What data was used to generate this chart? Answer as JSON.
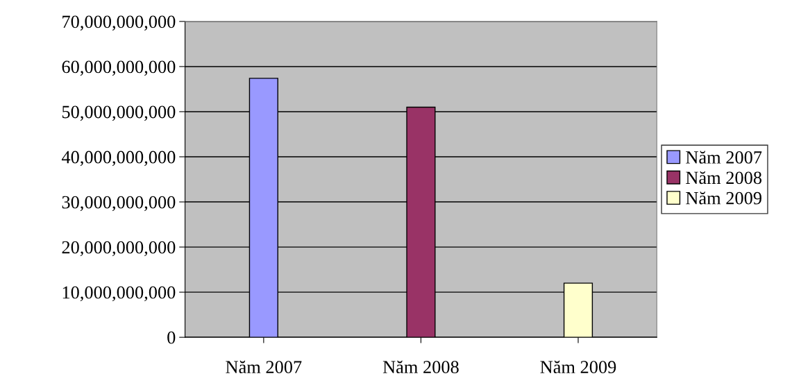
{
  "chart_data": {
    "type": "bar",
    "categories": [
      "Năm 2007",
      "Năm 2008",
      "Năm 2009"
    ],
    "series": [
      {
        "name": "Năm 2007",
        "color": "#9999ff",
        "values": [
          57400000000,
          null,
          null
        ]
      },
      {
        "name": "Năm 2008",
        "color": "#993366",
        "values": [
          null,
          51000000000,
          null
        ]
      },
      {
        "name": "Năm 2009",
        "color": "#ffffcc",
        "values": [
          null,
          null,
          12000000000
        ]
      }
    ],
    "ylim": [
      0,
      70000000000
    ],
    "yticks": [
      {
        "value": 0,
        "label": "0"
      },
      {
        "value": 10000000000,
        "label": "10,000,000,000"
      },
      {
        "value": 20000000000,
        "label": "20,000,000,000"
      },
      {
        "value": 30000000000,
        "label": "30,000,000,000"
      },
      {
        "value": 40000000000,
        "label": "40,000,000,000"
      },
      {
        "value": 50000000000,
        "label": "50,000,000,000"
      },
      {
        "value": 60000000000,
        "label": "60,000,000,000"
      },
      {
        "value": 70000000000,
        "label": "70,000,000,000"
      }
    ],
    "grid": "y",
    "legend": "right"
  }
}
